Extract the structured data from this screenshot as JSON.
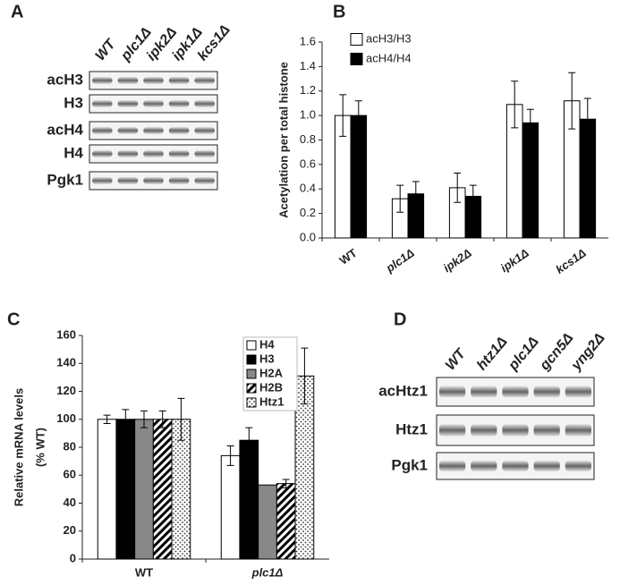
{
  "panel_labels": [
    "A",
    "B",
    "C",
    "D"
  ],
  "blots": [
    {
      "lanes": [
        "WT",
        "plc1Δ",
        "ipk2Δ",
        "ipk1Δ",
        "kcs1Δ"
      ],
      "rows": [
        "acH3",
        "H3",
        "acH4",
        "H4",
        "Pgk1"
      ]
    },
    {
      "lanes": [
        "WT",
        "htz1Δ",
        "plc1Δ",
        "gcn5Δ",
        "yng2Δ"
      ],
      "rows": [
        "acHtz1",
        "Htz1",
        "Pgk1"
      ]
    }
  ],
  "chart_data": [
    {
      "type": "bar",
      "y_label": [
        "Acetylation per total histone"
      ],
      "categories": [
        "WT",
        "plc1Δ",
        "ipk2Δ",
        "ipk1Δ",
        "kcs1Δ"
      ],
      "series": [
        {
          "name": "acH3/H3",
          "color": "#ffffff",
          "values": [
            1.0,
            0.32,
            0.41,
            1.09,
            1.12
          ],
          "errors": [
            0.17,
            0.11,
            0.12,
            0.19,
            0.23
          ]
        },
        {
          "name": "acH4/H4",
          "color": "#000000",
          "values": [
            1.0,
            0.36,
            0.34,
            0.94,
            0.97
          ],
          "errors": [
            0.12,
            0.1,
            0.09,
            0.11,
            0.17
          ]
        }
      ],
      "ylim": [
        0,
        1.6
      ],
      "yticks": [
        {
          "value": 0,
          "label": "0.0"
        },
        0.2,
        0.4,
        0.6,
        0.8,
        {
          "value": 1,
          "label": "1.0"
        },
        1.2,
        1.4,
        1.6
      ]
    },
    {
      "type": "bar",
      "y_label": [
        "Relative mRNA levels",
        "(% WT)"
      ],
      "categories": [
        "WT",
        "plc1Δ"
      ],
      "series": [
        {
          "name": "H4",
          "color": "#ffffff",
          "values": [
            100,
            74
          ],
          "errors": [
            3,
            7
          ]
        },
        {
          "name": "H3",
          "color": "#000000",
          "values": [
            100,
            85
          ],
          "errors": [
            7,
            9
          ]
        },
        {
          "name": "H2A",
          "color": "#888888",
          "values": [
            100,
            53
          ],
          "errors": [
            6,
            null
          ]
        },
        {
          "name": "H2B",
          "color": "#ffffff",
          "pattern": "hatch",
          "values": [
            100,
            54
          ],
          "errors": [
            6,
            3
          ]
        },
        {
          "name": "Htz1",
          "color": "#ffffff",
          "pattern": "dots",
          "values": [
            100,
            131
          ],
          "errors": [
            15,
            20
          ]
        }
      ],
      "ylim": [
        0,
        160
      ],
      "yticks": [
        0,
        20,
        40,
        60,
        80,
        100,
        120,
        140,
        160
      ]
    }
  ]
}
